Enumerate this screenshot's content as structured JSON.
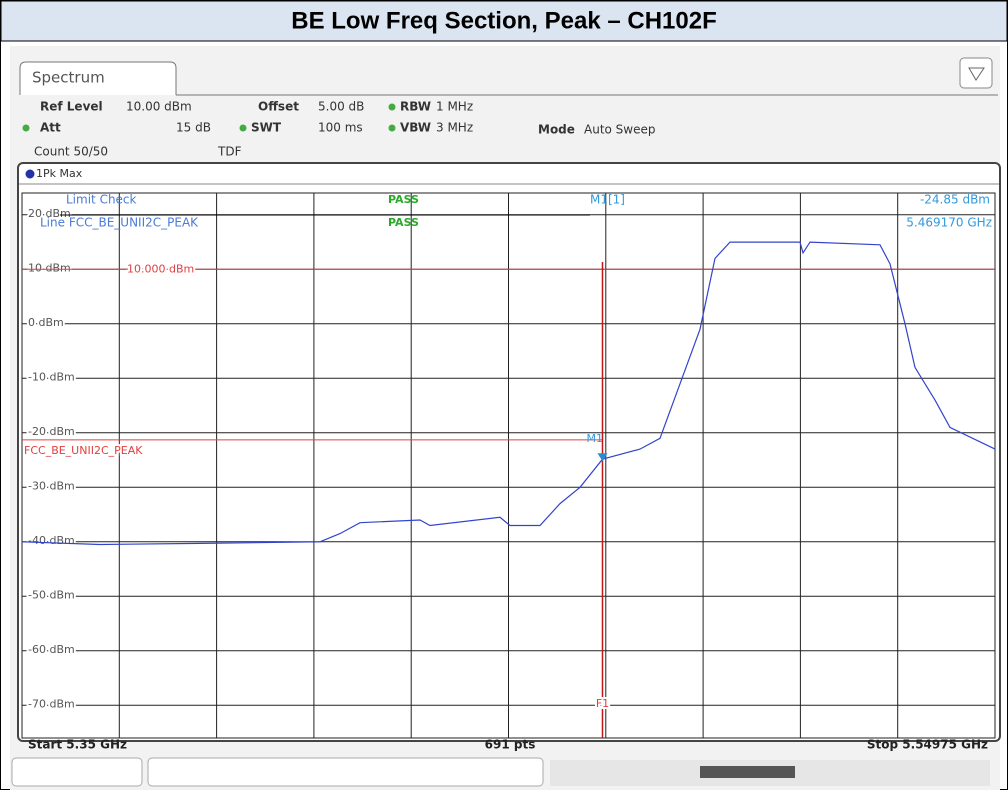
{
  "title": "BE Low Freq Section, Peak – CH102F",
  "tab": "Spectrum",
  "settings": {
    "ref_level": {
      "name": "Ref Level",
      "value": "10.00 dBm"
    },
    "offset": {
      "name": "Offset",
      "value": "5.00 dB"
    },
    "rbw": {
      "name": "RBW",
      "value": "1 MHz"
    },
    "att": {
      "name": "Att",
      "value": "15 dB"
    },
    "swt": {
      "name": "SWT",
      "value": "100 ms"
    },
    "vbw": {
      "name": "VBW",
      "value": "3 MHz"
    },
    "mode": {
      "name": "Mode",
      "value": "Auto Sweep"
    },
    "count": "Count 50/50",
    "tdf": "TDF"
  },
  "chart_data": {
    "type": "line",
    "trace_name": "1Pk Max",
    "x": [
      5.35,
      5.36601,
      5.38654,
      5.41118,
      5.41528,
      5.41939,
      5.43171,
      5.43376,
      5.44813,
      5.45018,
      5.45634,
      5.46045,
      5.46455,
      5.46917,
      5.47687,
      5.48098,
      5.48508,
      5.48919,
      5.49227,
      5.49535,
      5.50972,
      5.51034,
      5.51177,
      5.52614,
      5.52819,
      5.53127,
      5.53333,
      5.53744,
      5.54051,
      5.54975
    ],
    "values": [
      -40,
      -40.5,
      -40.3,
      -40,
      -38.5,
      -36.5,
      -36,
      -37,
      -35.5,
      -37,
      -37,
      -33,
      -30,
      -24.85,
      -23,
      -21,
      -11,
      -1,
      12,
      15,
      15,
      13,
      15,
      14.5,
      11,
      0,
      -8,
      -14,
      -19,
      -23
    ],
    "color": "#3344cc",
    "xlim": [
      5.35,
      5.54975
    ],
    "ylim": [
      -76,
      24
    ],
    "yticks": [
      {
        "value": 20,
        "label": "20 dBm"
      },
      {
        "value": 10,
        "label": "10 dBm"
      },
      {
        "value": 0,
        "label": "0 dBm"
      },
      {
        "value": -10,
        "label": "-10 dBm"
      },
      {
        "value": -20,
        "label": "-20 dBm"
      },
      {
        "value": -30,
        "label": "-30 dBm"
      },
      {
        "value": -40,
        "label": "-40 dBm"
      },
      {
        "value": -50,
        "label": "-50 dBm"
      },
      {
        "value": -60,
        "label": "-60 dBm"
      },
      {
        "value": -70,
        "label": "-70 dBm"
      }
    ],
    "grid": true,
    "limit_check": {
      "label": "Limit Check",
      "result": "PASS",
      "line_label": "Line FCC_BE_UNII2C_PEAK",
      "line_result": "PASS"
    },
    "display_line": {
      "value": 10,
      "label": "10.000 dBm",
      "color": "#e04040"
    },
    "limit_line": {
      "name": "FCC_BE_UNII2C_PEAK",
      "value": -21.3,
      "x_end": 5.46917,
      "color": "#e04040"
    },
    "marker": {
      "name": "M1[1]",
      "label": "M1",
      "x": 5.46917,
      "x_label": "5.469170 GHz",
      "value": -24.85,
      "value_label": "-24.85 dBm",
      "line_label": "F1"
    },
    "start_label": "Start 5.35 GHz",
    "points_label": "691 pts",
    "stop_label": "Stop 5.54975 GHz"
  }
}
